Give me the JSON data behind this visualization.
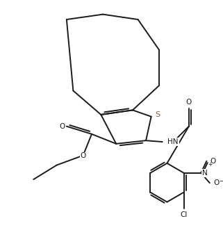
{
  "background": "#ffffff",
  "line_color": "#1a1a1a",
  "lw": 1.4,
  "figsize": [
    3.21,
    3.28
  ],
  "dpi": 100,
  "xlim": [
    0.0,
    6.8
  ],
  "ylim": [
    0.0,
    6.8
  ]
}
